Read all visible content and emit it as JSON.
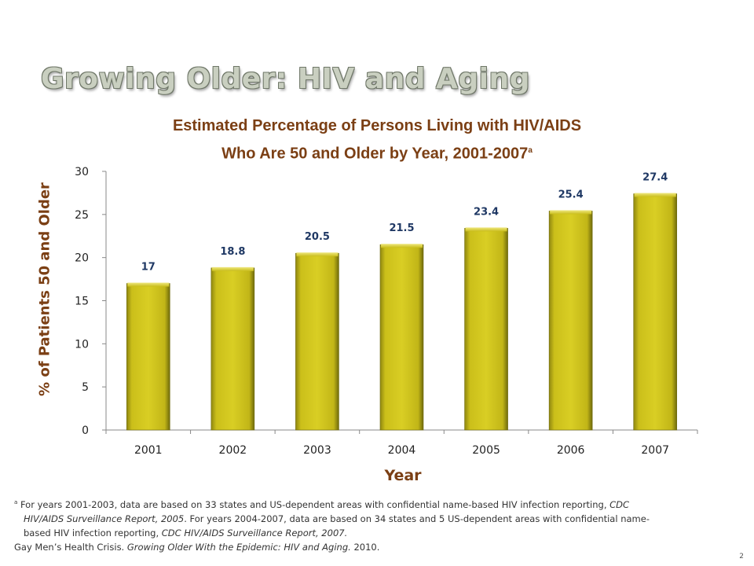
{
  "slide": {
    "title": "Growing Older: HIV and Aging",
    "page_number": "2"
  },
  "chart_data": {
    "type": "bar",
    "title_line1": "Estimated Percentage of Persons Living with HIV/AIDS",
    "title_line2": "Who Are 50 and Older by Year, 2001-2007",
    "title_sup": "a",
    "xlabel": "Year",
    "ylabel": "% of Patients 50 and Older",
    "categories": [
      "2001",
      "2002",
      "2003",
      "2004",
      "2005",
      "2006",
      "2007"
    ],
    "values": [
      17,
      18.8,
      20.5,
      21.5,
      23.4,
      25.4,
      27.4
    ],
    "value_labels": [
      "17",
      "18.8",
      "20.5",
      "21.5",
      "23.4",
      "25.4",
      "27.4"
    ],
    "ylim": [
      0,
      30
    ],
    "yticks": [
      0,
      5,
      10,
      15,
      20,
      25,
      30
    ],
    "grid": false,
    "bar_color": "#d4c81c"
  },
  "footnotes": {
    "sup": "a",
    "line1": "For years 2001-2003, data are based on 33 states and US-dependent areas with confidential name-based HIV infection reporting, ",
    "line1_italic": "CDC",
    "line2_italic": "HIV/AIDS Surveillance Report, 2005",
    "line2": ". For years 2004-2007, data are based on 34 states and 5 US-dependent areas with confidential name-",
    "line3": "based HIV infection reporting, ",
    "line3_italic": "CDC HIV/AIDS Surveillance Report, 2007.",
    "source_plain": "Gay Men’s Health Crisis. ",
    "source_italic": "Growing Older With the Epidemic: HIV and Aging.",
    "source_end": " 2010."
  }
}
